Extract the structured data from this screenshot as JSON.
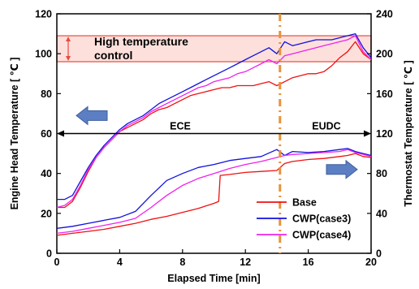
{
  "chart_data": {
    "type": "line",
    "xlabel": "Elapsed Time [min]",
    "ylabel_left": "Engine Head Temperature [ ℃ ]",
    "ylabel_right": "Thermostat Temperature [ ℃ ]",
    "xlim": [
      0,
      20
    ],
    "ylim_left": [
      0,
      120
    ],
    "ylim_right": [
      0,
      240
    ],
    "xticks": [
      "0",
      "4",
      "8",
      "12",
      "16",
      "20"
    ],
    "yticks_left": [
      "0",
      "20",
      "40",
      "60",
      "80",
      "100",
      "120"
    ],
    "yticks_right": [
      "0",
      "40",
      "80",
      "120",
      "160",
      "200",
      "240"
    ],
    "grid": false,
    "legend_position": "bottom-right",
    "annotations": {
      "high_temp_line1": "High temperature",
      "high_temp_line2": "control",
      "phase_ece": "ECE",
      "phase_eudc": "EUDC"
    },
    "high_temp_band_left_axis": [
      96,
      109
    ],
    "phase_boundary_x": 14.2,
    "series": [
      {
        "name": "Base",
        "color": "#ee1111",
        "axis": "left",
        "x": [
          0,
          0.5,
          1,
          1.5,
          2,
          2.5,
          3,
          3.5,
          4,
          4.5,
          5,
          5.5,
          6,
          6.5,
          7,
          7.5,
          8,
          8.5,
          9,
          9.5,
          10,
          10.5,
          11,
          11.5,
          12,
          12.5,
          13,
          13.5,
          14,
          14.5,
          15,
          15.5,
          16,
          16.5,
          17,
          17.5,
          18,
          18.5,
          19,
          19.5,
          20
        ],
        "y": [
          23,
          23,
          26,
          33,
          41,
          48,
          53,
          57,
          61,
          63,
          65,
          67,
          70,
          72,
          73,
          75,
          77,
          79,
          80,
          81,
          82,
          83,
          83,
          84,
          84,
          84,
          85,
          86,
          84,
          86,
          88,
          89,
          90,
          90,
          91,
          94,
          98,
          101,
          106,
          100,
          97
        ]
      },
      {
        "name": "CWP(case3)",
        "color": "#1111dd",
        "axis": "left",
        "x": [
          0,
          0.5,
          1,
          1.5,
          2,
          2.5,
          3,
          3.5,
          4,
          4.5,
          5,
          5.5,
          6,
          6.5,
          7,
          7.5,
          8,
          8.5,
          9,
          9.5,
          10,
          10.5,
          11,
          11.5,
          12,
          12.5,
          13,
          13.5,
          14,
          14.5,
          15,
          15.5,
          16,
          16.5,
          17,
          17.5,
          18,
          18.5,
          19,
          19.5,
          20
        ],
        "y": [
          27,
          27,
          29,
          36,
          43,
          49,
          54,
          58,
          62,
          65,
          67,
          69,
          72,
          75,
          77,
          79,
          81,
          83,
          85,
          87,
          89,
          91,
          93,
          95,
          97,
          99,
          101,
          103,
          100,
          106,
          104,
          105,
          106,
          107,
          107,
          107,
          108,
          109,
          110,
          103,
          98
        ]
      },
      {
        "name": "CWP(case4)",
        "color": "#ee22ee",
        "axis": "left",
        "x": [
          0,
          0.5,
          1,
          1.5,
          2,
          2.5,
          3,
          3.5,
          4,
          4.5,
          5,
          5.5,
          6,
          6.5,
          7,
          7.5,
          8,
          8.5,
          9,
          9.5,
          10,
          10.5,
          11,
          11.5,
          12,
          12.5,
          13,
          13.5,
          14,
          14.5,
          15,
          15.5,
          16,
          16.5,
          17,
          17.5,
          18,
          18.5,
          19,
          19.5,
          20
        ],
        "y": [
          23,
          24,
          27,
          34,
          42,
          48,
          53,
          57,
          61,
          64,
          66,
          68,
          71,
          73,
          75,
          77,
          79,
          81,
          83,
          84,
          86,
          87,
          88,
          90,
          91,
          93,
          95,
          97,
          95,
          99,
          100,
          101,
          102,
          103,
          104,
          105,
          106,
          107,
          109,
          101,
          97
        ]
      },
      {
        "name": "Base",
        "color": "#ee1111",
        "axis": "right",
        "x": [
          0,
          1,
          2,
          3,
          4,
          5,
          6,
          7,
          8,
          9,
          10,
          10.3,
          10.4,
          11,
          12,
          13,
          14,
          14.5,
          15,
          16,
          17,
          18,
          18.5,
          19,
          19.5,
          20
        ],
        "y": [
          18,
          20,
          22,
          24,
          27,
          30,
          34,
          37,
          41,
          45,
          50,
          52,
          78,
          79,
          81,
          82,
          83,
          90,
          92,
          94,
          95,
          97,
          98,
          100,
          97,
          96
        ]
      },
      {
        "name": "CWP(case3)",
        "color": "#1111dd",
        "axis": "right",
        "x": [
          0,
          1,
          2,
          3,
          4,
          5,
          6,
          7,
          8,
          9,
          10,
          11,
          12,
          13,
          14,
          14.5,
          15,
          16,
          17,
          18,
          18.5,
          19,
          19.5,
          20
        ],
        "y": [
          25,
          27,
          30,
          33,
          36,
          42,
          58,
          73,
          80,
          86,
          89,
          93,
          95,
          97,
          104,
          98,
          102,
          101,
          102,
          104,
          105,
          102,
          100,
          98
        ]
      },
      {
        "name": "CWP(case4)",
        "color": "#ee22ee",
        "axis": "right",
        "x": [
          0,
          1,
          2,
          3,
          4,
          5,
          6,
          7,
          8,
          9,
          10,
          11,
          12,
          13,
          14,
          14.5,
          15,
          16,
          17,
          18,
          18.5,
          19,
          19.5,
          20
        ],
        "y": [
          20,
          22,
          25,
          28,
          31,
          35,
          46,
          58,
          68,
          75,
          80,
          85,
          89,
          92,
          96,
          98,
          99,
          100,
          101,
          102,
          104,
          101,
          99,
          97
        ]
      }
    ]
  }
}
